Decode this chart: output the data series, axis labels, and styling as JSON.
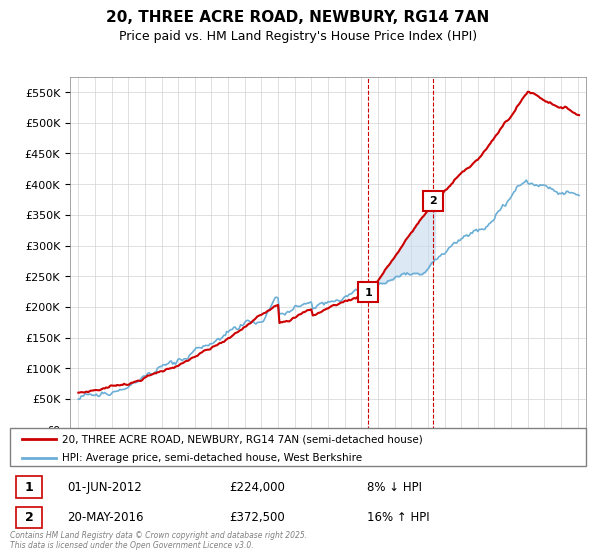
{
  "title_line1": "20, THREE ACRE ROAD, NEWBURY, RG14 7AN",
  "title_line2": "Price paid vs. HM Land Registry's House Price Index (HPI)",
  "sale1_date": "01-JUN-2012",
  "sale1_price": 224000,
  "sale1_label": "1",
  "sale1_hpi_diff": "8% ↓ HPI",
  "sale2_date": "20-MAY-2016",
  "sale2_price": 372500,
  "sale2_label": "2",
  "sale2_hpi_diff": "16% ↑ HPI",
  "legend1": "20, THREE ACRE ROAD, NEWBURY, RG14 7AN (semi-detached house)",
  "legend2": "HPI: Average price, semi-detached house, West Berkshire",
  "footer": "Contains HM Land Registry data © Crown copyright and database right 2025.\nThis data is licensed under the Open Government Licence v3.0.",
  "price_color": "#cc0000",
  "hpi_color": "#6baed6",
  "shaded_color": "#c6dbef",
  "dashed_line_color": "#cc0000",
  "ylim_min": 0,
  "ylim_max": 575000,
  "yticks": [
    0,
    50000,
    100000,
    150000,
    200000,
    250000,
    300000,
    350000,
    400000,
    450000,
    500000,
    550000
  ]
}
